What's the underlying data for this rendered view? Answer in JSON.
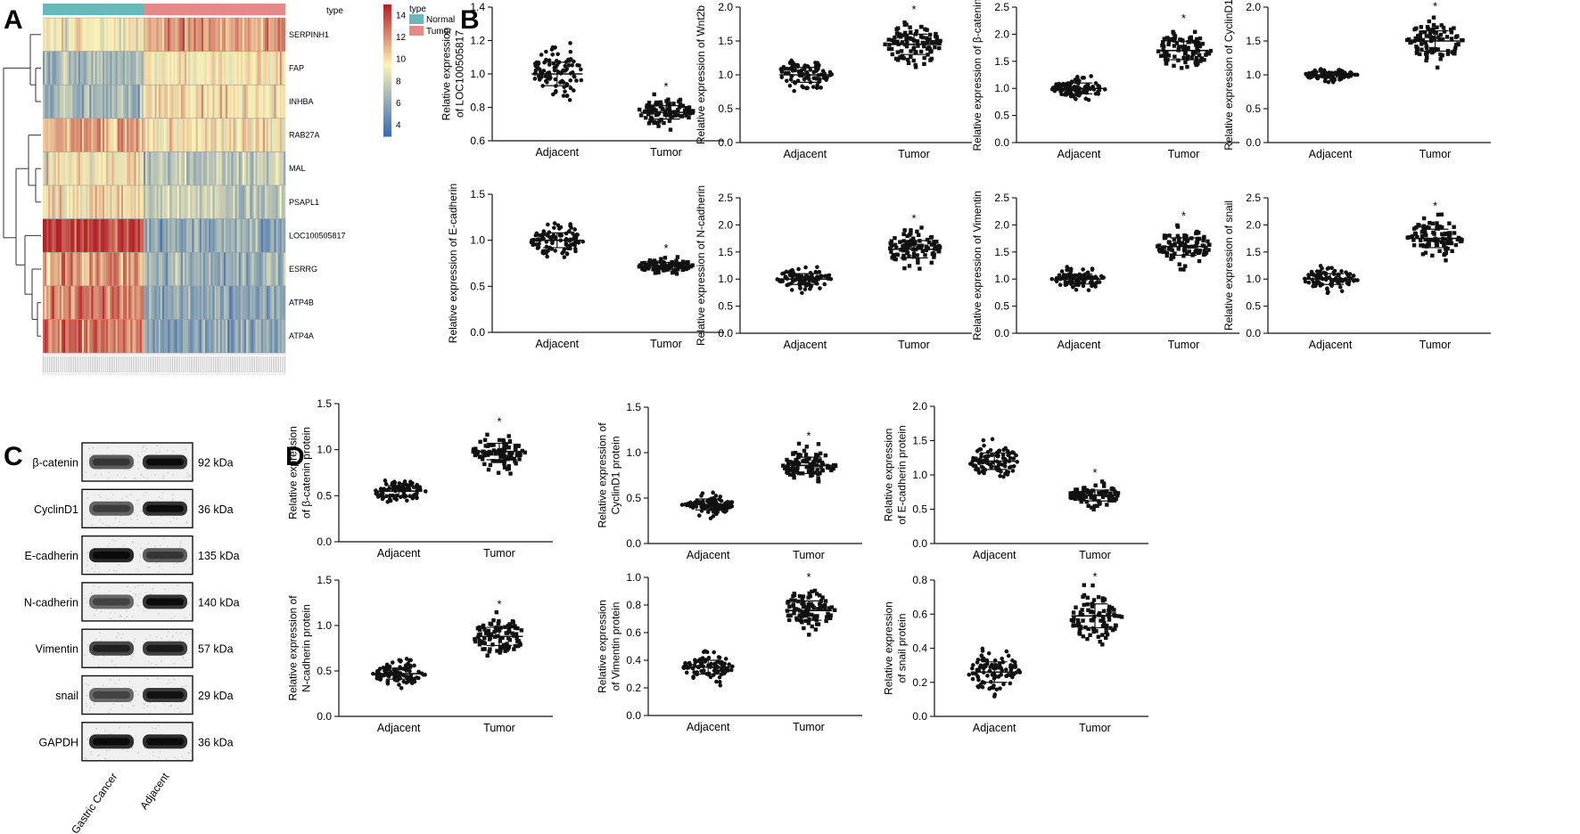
{
  "panels": {
    "A": {
      "letter": "A",
      "type_label": "type",
      "legend_title": "type",
      "legend_items": [
        {
          "label": "Normal",
          "color": "#6ab8b9"
        },
        {
          "label": "Tumor",
          "color": "#e48a87"
        }
      ],
      "colorbar_ticks": [
        "14",
        "12",
        "10",
        "8",
        "6",
        "4"
      ],
      "genes": [
        "SERPINH1",
        "FAP",
        "INHBA",
        "RAB27A",
        "MAL",
        "PSAPL1",
        "LOC100505817",
        "ESRRG",
        "ATP4B",
        "ATP4A"
      ],
      "gene_levels_normal": [
        9.5,
        6.5,
        6.8,
        11.8,
        9.8,
        10.0,
        14.2,
        11.8,
        12.5,
        12.8
      ],
      "gene_levels_tumor": [
        11.8,
        9.8,
        10.0,
        9.8,
        7.4,
        7.6,
        6.0,
        6.2,
        5.8,
        5.6
      ],
      "colors": {
        "high": "#b2222a",
        "mid": "#fbf3b8",
        "low": "#3b6bb0"
      }
    },
    "B": {
      "letter": "B"
    },
    "C": {
      "letter": "C",
      "rows": [
        {
          "label": "β-catenin",
          "kda": "92 kDa"
        },
        {
          "label": "CyclinD1",
          "kda": "36 kDa"
        },
        {
          "label": "E-cadherin",
          "kda": "135 kDa"
        },
        {
          "label": "N-cadherin",
          "kda": "140 kDa"
        },
        {
          "label": "Vimentin",
          "kda": "57 kDa"
        },
        {
          "label": "snail",
          "kda": "29 kDa"
        },
        {
          "label": "GAPDH",
          "kda": "36 kDa"
        }
      ],
      "lanes": [
        "Gastric Cancer",
        "Adjacent"
      ],
      "band_intensity": [
        [
          0.55,
          0.85
        ],
        [
          0.5,
          0.85
        ],
        [
          0.95,
          0.55
        ],
        [
          0.45,
          0.85
        ],
        [
          0.7,
          0.75
        ],
        [
          0.45,
          0.8
        ],
        [
          0.9,
          0.9
        ]
      ]
    },
    "D": {
      "letter": "D"
    }
  },
  "chart_data": [
    {
      "panel": "B",
      "type": "scatter",
      "categories": [
        "Adjacent",
        "Tumor"
      ],
      "ylabel_lines": [
        "Relative expression",
        "of LOC100505817"
      ],
      "ylim": [
        0.6,
        1.4
      ],
      "yticks": [
        "0.6",
        "0.8",
        "1.0",
        "1.2",
        "1.4"
      ],
      "series": [
        {
          "name": "Adjacent",
          "mean": 1.0,
          "sd": 0.07
        },
        {
          "name": "Tumor",
          "mean": 0.77,
          "sd": 0.04
        }
      ],
      "significance": "*"
    },
    {
      "panel": "B",
      "type": "scatter",
      "categories": [
        "Adjacent",
        "Tumor"
      ],
      "ylabel_lines": [
        "Relative expression of Wnt2b"
      ],
      "ylim": [
        0.0,
        2.0
      ],
      "yticks": [
        "0.0",
        "0.5",
        "1.0",
        "1.5",
        "2.0"
      ],
      "series": [
        {
          "name": "Adjacent",
          "mean": 1.0,
          "sd": 0.11
        },
        {
          "name": "Tumor",
          "mean": 1.45,
          "sd": 0.15
        }
      ],
      "significance": "*"
    },
    {
      "panel": "B",
      "type": "scatter",
      "categories": [
        "Adjacent",
        "Tumor"
      ],
      "ylabel_lines": [
        "Relative expression of β-catenin"
      ],
      "ylim": [
        0.0,
        2.5
      ],
      "yticks": [
        "0.0",
        "0.5",
        "1.0",
        "1.5",
        "2.0",
        "2.5"
      ],
      "series": [
        {
          "name": "Adjacent",
          "mean": 1.0,
          "sd": 0.1
        },
        {
          "name": "Tumor",
          "mean": 1.7,
          "sd": 0.17
        }
      ],
      "significance": "*"
    },
    {
      "panel": "B",
      "type": "scatter",
      "categories": [
        "Adjacent",
        "Tumor"
      ],
      "ylabel_lines": [
        "Relative expression of CyclinD1"
      ],
      "ylim": [
        0.0,
        2.0
      ],
      "yticks": [
        "0.0",
        "0.5",
        "1.0",
        "1.5",
        "2.0"
      ],
      "series": [
        {
          "name": "Adjacent",
          "mean": 1.0,
          "sd": 0.04
        },
        {
          "name": "Tumor",
          "mean": 1.5,
          "sd": 0.15
        }
      ],
      "significance": "*"
    },
    {
      "panel": "B",
      "type": "scatter",
      "categories": [
        "Adjacent",
        "Tumor"
      ],
      "ylabel_lines": [
        "Relative expression of E-cadherin"
      ],
      "ylim": [
        0.0,
        1.5
      ],
      "yticks": [
        "0.0",
        "0.5",
        "1.0",
        "1.5"
      ],
      "series": [
        {
          "name": "Adjacent",
          "mean": 1.0,
          "sd": 0.08
        },
        {
          "name": "Tumor",
          "mean": 0.72,
          "sd": 0.04
        }
      ],
      "significance": "*"
    },
    {
      "panel": "B",
      "type": "scatter",
      "categories": [
        "Adjacent",
        "Tumor"
      ],
      "ylabel_lines": [
        "Relative expression of N-cadherin"
      ],
      "ylim": [
        0.0,
        2.5
      ],
      "yticks": [
        "0.0",
        "0.5",
        "1.0",
        "1.5",
        "2.0",
        "2.5"
      ],
      "series": [
        {
          "name": "Adjacent",
          "mean": 1.0,
          "sd": 0.1
        },
        {
          "name": "Tumor",
          "mean": 1.55,
          "sd": 0.16
        }
      ],
      "significance": "*"
    },
    {
      "panel": "B",
      "type": "scatter",
      "categories": [
        "Adjacent",
        "Tumor"
      ],
      "ylabel_lines": [
        "Relative expression of Vimentin"
      ],
      "ylim": [
        0.0,
        2.5
      ],
      "yticks": [
        "0.0",
        "0.5",
        "1.0",
        "1.5",
        "2.0",
        "2.5"
      ],
      "series": [
        {
          "name": "Adjacent",
          "mean": 1.0,
          "sd": 0.09
        },
        {
          "name": "Tumor",
          "mean": 1.6,
          "sd": 0.16
        }
      ],
      "significance": "*"
    },
    {
      "panel": "B",
      "type": "scatter",
      "categories": [
        "Adjacent",
        "Tumor"
      ],
      "ylabel_lines": [
        "Relative expression of snail"
      ],
      "ylim": [
        0.0,
        2.5
      ],
      "yticks": [
        "0.0",
        "0.5",
        "1.0",
        "1.5",
        "2.0",
        "2.5"
      ],
      "series": [
        {
          "name": "Adjacent",
          "mean": 1.0,
          "sd": 0.1
        },
        {
          "name": "Tumor",
          "mean": 1.75,
          "sd": 0.17
        }
      ],
      "significance": "*"
    },
    {
      "panel": "D",
      "type": "scatter",
      "categories": [
        "Adjacent",
        "Tumor"
      ],
      "ylabel_lines": [
        "Relative expression",
        "of β-catenin protein"
      ],
      "ylim": [
        0.0,
        1.5
      ],
      "yticks": [
        "0.0",
        "0.5",
        "1.0",
        "1.5"
      ],
      "series": [
        {
          "name": "Adjacent",
          "mean": 0.55,
          "sd": 0.06
        },
        {
          "name": "Tumor",
          "mean": 0.98,
          "sd": 0.09
        }
      ],
      "significance": "*"
    },
    {
      "panel": "D",
      "type": "scatter",
      "categories": [
        "Adjacent",
        "Tumor"
      ],
      "ylabel_lines": [
        "Relative expression of",
        "CyclinD1 protein"
      ],
      "ylim": [
        0.0,
        1.5
      ],
      "yticks": [
        "0.0",
        "0.5",
        "1.0",
        "1.5"
      ],
      "series": [
        {
          "name": "Adjacent",
          "mean": 0.43,
          "sd": 0.06
        },
        {
          "name": "Tumor",
          "mean": 0.86,
          "sd": 0.09
        }
      ],
      "significance": "*"
    },
    {
      "panel": "D",
      "type": "scatter",
      "categories": [
        "Adjacent",
        "Tumor"
      ],
      "ylabel_lines": [
        "Relative expression",
        "of E-cadherin protein"
      ],
      "ylim": [
        0.0,
        2.0
      ],
      "yticks": [
        "0.0",
        "0.5",
        "1.0",
        "1.5",
        "2.0"
      ],
      "series": [
        {
          "name": "Adjacent",
          "mean": 1.2,
          "sd": 0.12
        },
        {
          "name": "Tumor",
          "mean": 0.7,
          "sd": 0.08
        }
      ],
      "significance": "*"
    },
    {
      "panel": "D",
      "type": "scatter",
      "categories": [
        "Adjacent",
        "Tumor"
      ],
      "ylabel_lines": [
        "Relative expression of",
        "N-cadherin protein"
      ],
      "ylim": [
        0.0,
        1.5
      ],
      "yticks": [
        "0.0",
        "0.5",
        "1.0",
        "1.5"
      ],
      "series": [
        {
          "name": "Adjacent",
          "mean": 0.47,
          "sd": 0.06
        },
        {
          "name": "Tumor",
          "mean": 0.88,
          "sd": 0.1
        }
      ],
      "significance": "*"
    },
    {
      "panel": "D",
      "type": "scatter",
      "categories": [
        "Adjacent",
        "Tumor"
      ],
      "ylabel_lines": [
        "Relative expression",
        "of Vimentin protein"
      ],
      "ylim": [
        0.0,
        1.0
      ],
      "yticks": [
        "0.0",
        "0.2",
        "0.4",
        "0.6",
        "0.8",
        "1.0"
      ],
      "series": [
        {
          "name": "Adjacent",
          "mean": 0.35,
          "sd": 0.05
        },
        {
          "name": "Tumor",
          "mean": 0.76,
          "sd": 0.07
        }
      ],
      "significance": "*"
    },
    {
      "panel": "D",
      "type": "scatter",
      "categories": [
        "Adjacent",
        "Tumor"
      ],
      "ylabel_lines": [
        "Relative expression",
        "of snail protein"
      ],
      "ylim": [
        0.0,
        0.8
      ],
      "yticks": [
        "0.0",
        "0.2",
        "0.4",
        "0.6",
        "0.8"
      ],
      "series": [
        {
          "name": "Adjacent",
          "mean": 0.26,
          "sd": 0.06
        },
        {
          "name": "Tumor",
          "mean": 0.59,
          "sd": 0.07
        }
      ],
      "significance": "*"
    }
  ]
}
